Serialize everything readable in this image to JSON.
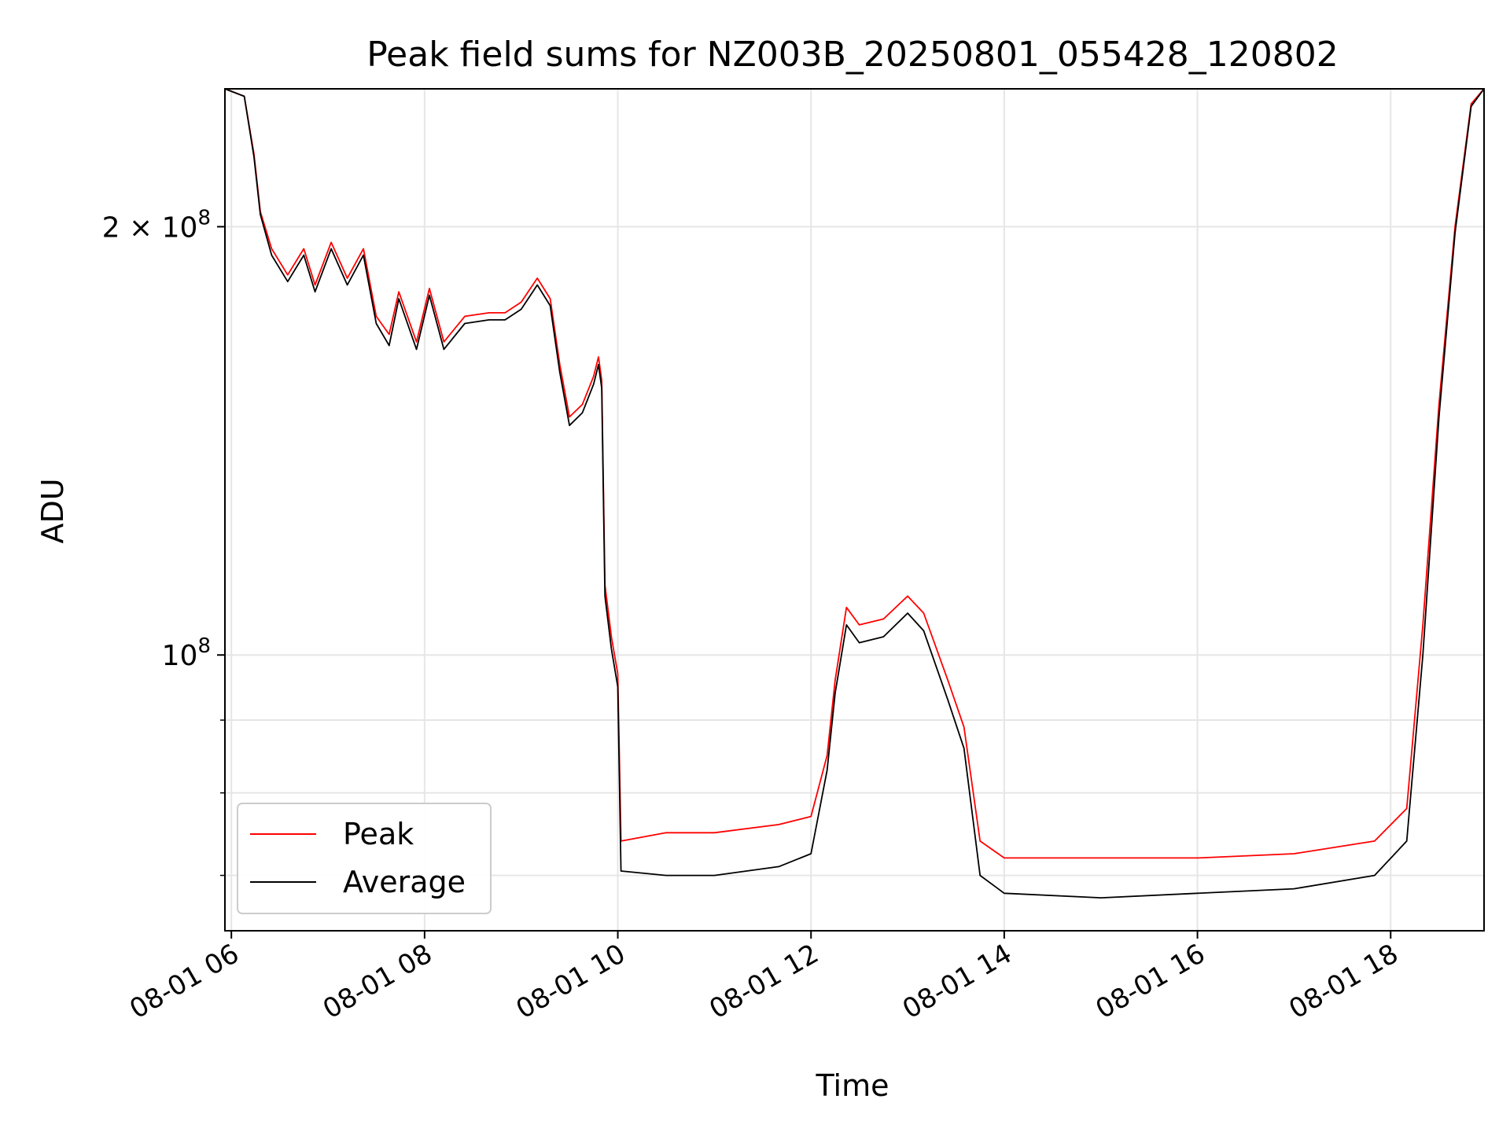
{
  "chart_data": {
    "type": "line",
    "title": "Peak field sums for NZ003B_20250801_055428_120802",
    "xlabel": "Time",
    "ylabel": "ADU",
    "y_scale": "log",
    "ylim": [
      64000000,
      250000000
    ],
    "xlim": [
      "08-01 05:56",
      "08-01 18:58"
    ],
    "grid": true,
    "legend_position": "lower-left",
    "x_ticks": [
      {
        "t": "08-01 06:00",
        "label": "08-01 06"
      },
      {
        "t": "08-01 08:00",
        "label": "08-01 08"
      },
      {
        "t": "08-01 10:00",
        "label": "08-01 10"
      },
      {
        "t": "08-01 12:00",
        "label": "08-01 12"
      },
      {
        "t": "08-01 14:00",
        "label": "08-01 14"
      },
      {
        "t": "08-01 16:00",
        "label": "08-01 16"
      },
      {
        "t": "08-01 18:00",
        "label": "08-01 18"
      }
    ],
    "y_ticks_major": [
      {
        "value": 100000000,
        "mantissa": "",
        "base": "10",
        "exp": "8"
      },
      {
        "value": 200000000,
        "mantissa": "2 × ",
        "base": "10",
        "exp": "8"
      }
    ],
    "y_ticks_minor": [
      70000000,
      80000000,
      90000000
    ],
    "series": [
      {
        "name": "Peak",
        "color": "#ff0000",
        "points": [
          [
            "08-01 05:56",
            250000000
          ],
          [
            "08-01 06:08",
            247000000
          ],
          [
            "08-01 06:14",
            225000000
          ],
          [
            "08-01 06:18",
            205000000
          ],
          [
            "08-01 06:25",
            193000000
          ],
          [
            "08-01 06:35",
            185000000
          ],
          [
            "08-01 06:45",
            193000000
          ],
          [
            "08-01 06:52",
            182000000
          ],
          [
            "08-01 07:02",
            195000000
          ],
          [
            "08-01 07:12",
            184000000
          ],
          [
            "08-01 07:22",
            193000000
          ],
          [
            "08-01 07:30",
            173000000
          ],
          [
            "08-01 07:38",
            168000000
          ],
          [
            "08-01 07:44",
            180000000
          ],
          [
            "08-01 07:55",
            166000000
          ],
          [
            "08-01 08:03",
            181000000
          ],
          [
            "08-01 08:12",
            166000000
          ],
          [
            "08-01 08:25",
            173000000
          ],
          [
            "08-01 08:40",
            174000000
          ],
          [
            "08-01 08:50",
            174000000
          ],
          [
            "08-01 09:00",
            177000000
          ],
          [
            "08-01 09:10",
            184000000
          ],
          [
            "08-01 09:18",
            178000000
          ],
          [
            "08-01 09:24",
            160000000
          ],
          [
            "08-01 09:30",
            147000000
          ],
          [
            "08-01 09:38",
            150000000
          ],
          [
            "08-01 09:45",
            157000000
          ],
          [
            "08-01 09:48",
            162000000
          ],
          [
            "08-01 09:50",
            156000000
          ],
          [
            "08-01 09:52",
            112000000
          ],
          [
            "08-01 09:56",
            103000000
          ],
          [
            "08-01 10:00",
            97000000
          ],
          [
            "08-01 10:02",
            74000000
          ],
          [
            "08-01 10:30",
            75000000
          ],
          [
            "08-01 11:00",
            75000000
          ],
          [
            "08-01 11:40",
            76000000
          ],
          [
            "08-01 12:00",
            77000000
          ],
          [
            "08-01 12:10",
            85000000
          ],
          [
            "08-01 12:15",
            96000000
          ],
          [
            "08-01 12:22",
            108000000
          ],
          [
            "08-01 12:30",
            105000000
          ],
          [
            "08-01 12:45",
            106000000
          ],
          [
            "08-01 13:00",
            110000000
          ],
          [
            "08-01 13:10",
            107000000
          ],
          [
            "08-01 13:25",
            96000000
          ],
          [
            "08-01 13:35",
            89000000
          ],
          [
            "08-01 13:45",
            74000000
          ],
          [
            "08-01 14:00",
            72000000
          ],
          [
            "08-01 15:00",
            72000000
          ],
          [
            "08-01 16:00",
            72000000
          ],
          [
            "08-01 17:00",
            72500000
          ],
          [
            "08-01 17:50",
            74000000
          ],
          [
            "08-01 18:10",
            78000000
          ],
          [
            "08-01 18:20",
            105000000
          ],
          [
            "08-01 18:30",
            150000000
          ],
          [
            "08-01 18:40",
            200000000
          ],
          [
            "08-01 18:50",
            244000000
          ],
          [
            "08-01 18:58",
            250000000
          ]
        ]
      },
      {
        "name": "Average",
        "color": "#000000",
        "points": [
          [
            "08-01 05:56",
            250000000
          ],
          [
            "08-01 06:08",
            247000000
          ],
          [
            "08-01 06:14",
            224000000
          ],
          [
            "08-01 06:18",
            204000000
          ],
          [
            "08-01 06:25",
            191000000
          ],
          [
            "08-01 06:35",
            183000000
          ],
          [
            "08-01 06:45",
            191000000
          ],
          [
            "08-01 06:52",
            180000000
          ],
          [
            "08-01 07:02",
            193000000
          ],
          [
            "08-01 07:12",
            182000000
          ],
          [
            "08-01 07:22",
            191000000
          ],
          [
            "08-01 07:30",
            171000000
          ],
          [
            "08-01 07:38",
            165000000
          ],
          [
            "08-01 07:44",
            178000000
          ],
          [
            "08-01 07:55",
            164000000
          ],
          [
            "08-01 08:03",
            179000000
          ],
          [
            "08-01 08:12",
            164000000
          ],
          [
            "08-01 08:25",
            171000000
          ],
          [
            "08-01 08:40",
            172000000
          ],
          [
            "08-01 08:50",
            172000000
          ],
          [
            "08-01 09:00",
            175000000
          ],
          [
            "08-01 09:10",
            182000000
          ],
          [
            "08-01 09:18",
            176000000
          ],
          [
            "08-01 09:24",
            158000000
          ],
          [
            "08-01 09:30",
            145000000
          ],
          [
            "08-01 09:38",
            148000000
          ],
          [
            "08-01 09:45",
            155000000
          ],
          [
            "08-01 09:48",
            160000000
          ],
          [
            "08-01 09:50",
            154000000
          ],
          [
            "08-01 09:52",
            110000000
          ],
          [
            "08-01 09:56",
            101000000
          ],
          [
            "08-01 10:00",
            95000000
          ],
          [
            "08-01 10:02",
            70500000
          ],
          [
            "08-01 10:30",
            70000000
          ],
          [
            "08-01 11:00",
            70000000
          ],
          [
            "08-01 11:40",
            71000000
          ],
          [
            "08-01 12:00",
            72500000
          ],
          [
            "08-01 12:10",
            83000000
          ],
          [
            "08-01 12:15",
            94000000
          ],
          [
            "08-01 12:22",
            105000000
          ],
          [
            "08-01 12:30",
            102000000
          ],
          [
            "08-01 12:45",
            103000000
          ],
          [
            "08-01 13:00",
            107000000
          ],
          [
            "08-01 13:10",
            104000000
          ],
          [
            "08-01 13:25",
            93000000
          ],
          [
            "08-01 13:35",
            86000000
          ],
          [
            "08-01 13:45",
            70000000
          ],
          [
            "08-01 14:00",
            68000000
          ],
          [
            "08-01 15:00",
            67500000
          ],
          [
            "08-01 16:00",
            68000000
          ],
          [
            "08-01 17:00",
            68500000
          ],
          [
            "08-01 17:50",
            70000000
          ],
          [
            "08-01 18:10",
            74000000
          ],
          [
            "08-01 18:20",
            100000000
          ],
          [
            "08-01 18:30",
            147000000
          ],
          [
            "08-01 18:40",
            198000000
          ],
          [
            "08-01 18:50",
            243000000
          ],
          [
            "08-01 18:58",
            250000000
          ]
        ]
      }
    ]
  }
}
